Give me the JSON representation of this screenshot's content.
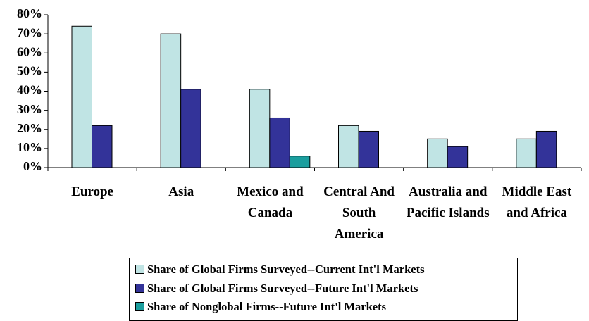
{
  "chart_data": {
    "type": "bar",
    "categories": [
      "Europe",
      "Asia",
      "Mexico and Canada",
      "Central And South America",
      "Australia and Pacific Islands",
      "Middle East and Africa"
    ],
    "series": [
      {
        "name": "Share of Global Firms Surveyed--Current Int'l Markets",
        "color": "#c0e4e4",
        "values": [
          74,
          70,
          41,
          22,
          15,
          15
        ]
      },
      {
        "name": "Share of Global Firms Surveyed--Future Int'l Markets",
        "color": "#333399",
        "values": [
          22,
          41,
          26,
          19,
          11,
          19
        ]
      },
      {
        "name": "Share of Nonglobal Firms--Future Int'l Markets",
        "color": "#1a9e9e",
        "values": [
          null,
          null,
          6,
          null,
          null,
          null
        ]
      }
    ],
    "ylim": [
      0,
      80
    ],
    "yticks": [
      {
        "value": 0,
        "label": "0%"
      },
      {
        "value": 10,
        "label": "10%"
      },
      {
        "value": 20,
        "label": "20%"
      },
      {
        "value": 30,
        "label": "30%"
      },
      {
        "value": 40,
        "label": "40%"
      },
      {
        "value": 50,
        "label": "50%"
      },
      {
        "value": 60,
        "label": "60%"
      },
      {
        "value": 70,
        "label": "70%"
      },
      {
        "value": 80,
        "label": "80%"
      }
    ],
    "legend": "bottom"
  }
}
